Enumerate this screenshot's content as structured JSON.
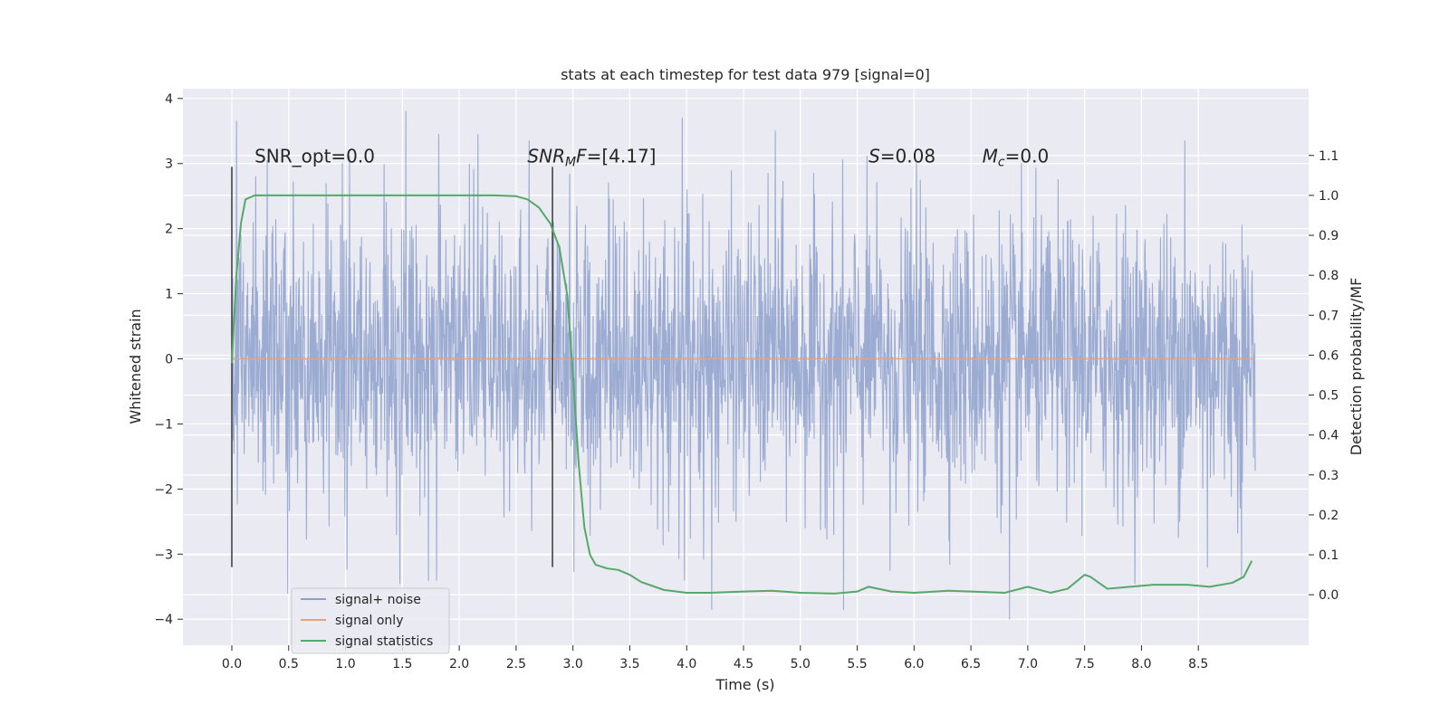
{
  "chart_data": {
    "type": "line",
    "title": "stats at each timestep for test data 979 [signal=0]",
    "xlabel": "Time (s)",
    "ylabel": "Whitened strain",
    "y2label": "Detection probability/MF",
    "xlim": [
      -0.43,
      9.47
    ],
    "ylim": [
      -4.4,
      4.15
    ],
    "y2lim": [
      -0.1265,
      1.2672
    ],
    "x_ticks": [
      0.0,
      0.5,
      1.0,
      1.5,
      2.0,
      2.5,
      3.0,
      3.5,
      4.0,
      4.5,
      5.0,
      5.5,
      6.0,
      6.5,
      7.0,
      7.5,
      8.0,
      8.5
    ],
    "x_tick_labels": [
      "0.0",
      "0.5",
      "1.0",
      "1.5",
      "2.0",
      "2.5",
      "3.0",
      "3.5",
      "4.0",
      "4.5",
      "5.0",
      "5.5",
      "6.0",
      "6.5",
      "7.0",
      "7.5",
      "8.0",
      "8.5"
    ],
    "y_ticks": [
      -4,
      -3,
      -2,
      -1,
      0,
      1,
      2,
      3,
      4
    ],
    "y_tick_labels": [
      "−4",
      "−3",
      "−2",
      "−1",
      "0",
      "1",
      "2",
      "3",
      "4"
    ],
    "y2_ticks": [
      0.0,
      0.1,
      0.2,
      0.3,
      0.4,
      0.5,
      0.6,
      0.7,
      0.8,
      0.9,
      1.0,
      1.1
    ],
    "y2_tick_labels": [
      "0.0",
      "0.1",
      "0.2",
      "0.3",
      "0.4",
      "0.5",
      "0.6",
      "0.7",
      "0.8",
      "0.9",
      "1.0",
      "1.1"
    ],
    "grid": true,
    "legend_position": "lower-left",
    "series": [
      {
        "name": "signal+ noise",
        "color": "#8da0cb",
        "axis": "left",
        "x_range": [
          0.0,
          9.0
        ],
        "noise_envelope": {
          "typical_abs": 1.3,
          "max": 3.8,
          "min": -4.0
        },
        "peaks": [
          [
            0.04,
            3.65
          ],
          [
            0.31,
            3.05
          ],
          [
            0.49,
            -3.6
          ],
          [
            0.97,
            3.0
          ],
          [
            1.53,
            3.8
          ],
          [
            1.8,
            -3.4
          ],
          [
            3.96,
            3.7
          ],
          [
            3.98,
            -3.4
          ],
          [
            4.22,
            -3.85
          ],
          [
            4.78,
            3.5
          ],
          [
            5.38,
            -3.85
          ],
          [
            5.79,
            -3.25
          ],
          [
            6.02,
            3.0
          ],
          [
            6.84,
            -4.0
          ],
          [
            8.38,
            3.35
          ],
          [
            8.58,
            -3.2
          ],
          [
            8.88,
            -3.35
          ]
        ]
      },
      {
        "name": "signal only",
        "color": "#e5a27f",
        "axis": "left",
        "x": [
          0.0,
          9.0
        ],
        "y": [
          0.0,
          0.0
        ]
      },
      {
        "name": "signal statistics",
        "color": "#55a868",
        "axis": "right",
        "x": [
          0.0,
          0.04,
          0.08,
          0.12,
          0.2,
          0.3,
          0.5,
          1.0,
          1.5,
          2.0,
          2.3,
          2.5,
          2.6,
          2.7,
          2.8,
          2.88,
          2.95,
          3.0,
          3.05,
          3.1,
          3.15,
          3.2,
          3.3,
          3.4,
          3.5,
          3.6,
          3.8,
          4.0,
          4.2,
          4.5,
          4.75,
          5.0,
          5.3,
          5.5,
          5.6,
          5.8,
          6.0,
          6.3,
          6.5,
          6.8,
          7.0,
          7.2,
          7.35,
          7.5,
          7.55,
          7.7,
          7.9,
          8.1,
          8.4,
          8.6,
          8.8,
          8.9,
          8.97
        ],
        "y": [
          0.58,
          0.8,
          0.93,
          0.99,
          1.0,
          1.0,
          1.0,
          1.0,
          1.0,
          1.0,
          1.0,
          0.998,
          0.99,
          0.97,
          0.93,
          0.87,
          0.75,
          0.55,
          0.33,
          0.17,
          0.1,
          0.075,
          0.066,
          0.062,
          0.05,
          0.032,
          0.012,
          0.005,
          0.005,
          0.008,
          0.01,
          0.005,
          0.003,
          0.008,
          0.02,
          0.008,
          0.005,
          0.01,
          0.008,
          0.005,
          0.02,
          0.005,
          0.015,
          0.05,
          0.045,
          0.015,
          0.02,
          0.025,
          0.025,
          0.02,
          0.03,
          0.045,
          0.085
        ]
      }
    ],
    "vertical_lines": [
      {
        "x": 0.0,
        "y_from": -3.2,
        "y_to": 2.95,
        "color": "#444444"
      },
      {
        "x": 2.82,
        "y_from": -3.2,
        "y_to": 2.95,
        "color": "#444444"
      }
    ],
    "annotations": [
      {
        "id": "snr-opt",
        "x": 0.2,
        "y": 3.0,
        "segments": [
          {
            "text": "SNR_opt=0.0"
          }
        ]
      },
      {
        "id": "snr-mf",
        "x": 2.6,
        "y": 3.0,
        "segments": [
          {
            "text": "SNR",
            "italic": true
          },
          {
            "text": "M",
            "italic": true,
            "sub": true
          },
          {
            "text": "F",
            "italic": true
          },
          {
            "text": "=[4.17]"
          }
        ]
      },
      {
        "id": "s",
        "x": 5.6,
        "y": 3.0,
        "segments": [
          {
            "text": "S",
            "italic": true
          },
          {
            "text": "=0.08"
          }
        ]
      },
      {
        "id": "mc",
        "x": 6.6,
        "y": 3.0,
        "segments": [
          {
            "text": "M",
            "italic": true
          },
          {
            "text": "c",
            "italic": true,
            "sub": true
          },
          {
            "text": "=0.0"
          }
        ]
      }
    ]
  }
}
